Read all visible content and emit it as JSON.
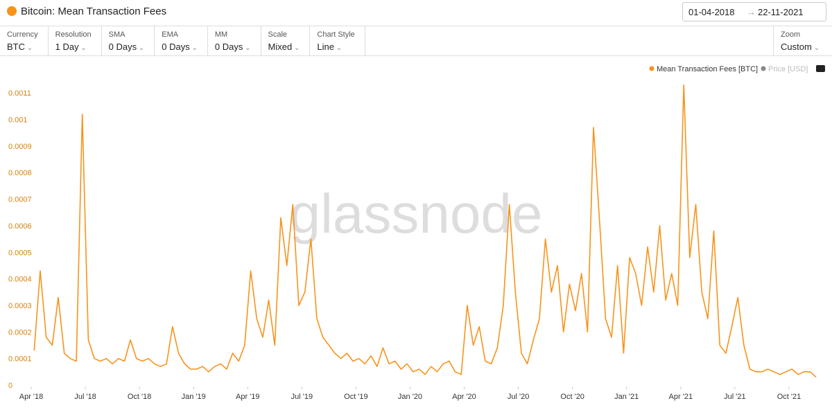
{
  "ui": {
    "title": "Bitcoin: Mean Transaction Fees",
    "date_from": "01-04-2018",
    "date_to": "22-11-2021",
    "controls": [
      {
        "label": "Currency",
        "value": "BTC"
      },
      {
        "label": "Resolution",
        "value": "1 Day"
      },
      {
        "label": "SMA",
        "value": "0 Days"
      },
      {
        "label": "EMA",
        "value": "0 Days"
      },
      {
        "label": "MM",
        "value": "0 Days"
      },
      {
        "label": "Scale",
        "value": "Mixed"
      },
      {
        "label": "Chart Style",
        "value": "Line"
      }
    ],
    "zoom": {
      "label": "Zoom",
      "value": "Custom"
    }
  },
  "chart_data": {
    "type": "line",
    "watermark": "glassnode",
    "legend_inactive": "Price [USD]",
    "grid": false,
    "xlim": [
      "2018-04",
      "2021-11"
    ],
    "ylim": [
      0,
      0.00115
    ],
    "yticks": [
      0,
      0.0001,
      0.0002,
      0.0003,
      0.0004,
      0.0005,
      0.0006,
      0.0007,
      0.0008,
      0.0009,
      0.001,
      0.0011
    ],
    "xticks": [
      {
        "value": "2018-04",
        "label": "Apr '18"
      },
      {
        "value": "2018-07",
        "label": "Jul '18"
      },
      {
        "value": "2018-10",
        "label": "Oct '18"
      },
      {
        "value": "2019-01",
        "label": "Jan '19"
      },
      {
        "value": "2019-04",
        "label": "Apr '19"
      },
      {
        "value": "2019-07",
        "label": "Jul '19"
      },
      {
        "value": "2019-10",
        "label": "Oct '19"
      },
      {
        "value": "2020-01",
        "label": "Jan '20"
      },
      {
        "value": "2020-04",
        "label": "Apr '20"
      },
      {
        "value": "2020-07",
        "label": "Jul '20"
      },
      {
        "value": "2020-10",
        "label": "Oct '20"
      },
      {
        "value": "2021-01",
        "label": "Jan '21"
      },
      {
        "value": "2021-04",
        "label": "Apr '21"
      },
      {
        "value": "2021-07",
        "label": "Jul '21"
      },
      {
        "value": "2021-10",
        "label": "Oct '21"
      }
    ],
    "x": [
      "2018-04",
      "2018-04",
      "2018-04",
      "2018-05",
      "2018-05",
      "2018-05",
      "2018-06",
      "2018-06",
      "2018-06",
      "2018-07",
      "2018-07",
      "2018-07",
      "2018-08",
      "2018-08",
      "2018-08",
      "2018-09",
      "2018-09",
      "2018-09",
      "2018-10",
      "2018-10",
      "2018-10",
      "2018-11",
      "2018-11",
      "2018-11",
      "2018-12",
      "2018-12",
      "2018-12",
      "2019-01",
      "2019-01",
      "2019-01",
      "2019-02",
      "2019-02",
      "2019-02",
      "2019-03",
      "2019-03",
      "2019-03",
      "2019-04",
      "2019-04",
      "2019-04",
      "2019-05",
      "2019-05",
      "2019-05",
      "2019-06",
      "2019-06",
      "2019-06",
      "2019-07",
      "2019-07",
      "2019-07",
      "2019-08",
      "2019-08",
      "2019-08",
      "2019-09",
      "2019-09",
      "2019-09",
      "2019-10",
      "2019-10",
      "2019-10",
      "2019-11",
      "2019-11",
      "2019-11",
      "2019-12",
      "2019-12",
      "2019-12",
      "2020-01",
      "2020-01",
      "2020-01",
      "2020-02",
      "2020-02",
      "2020-02",
      "2020-03",
      "2020-03",
      "2020-03",
      "2020-04",
      "2020-04",
      "2020-04",
      "2020-05",
      "2020-05",
      "2020-05",
      "2020-06",
      "2020-06",
      "2020-06",
      "2020-07",
      "2020-07",
      "2020-07",
      "2020-08",
      "2020-08",
      "2020-08",
      "2020-09",
      "2020-09",
      "2020-09",
      "2020-10",
      "2020-10",
      "2020-10",
      "2020-11",
      "2020-11",
      "2020-11",
      "2020-12",
      "2020-12",
      "2020-12",
      "2021-01",
      "2021-01",
      "2021-01",
      "2021-02",
      "2021-02",
      "2021-02",
      "2021-03",
      "2021-03",
      "2021-03",
      "2021-04",
      "2021-04",
      "2021-04",
      "2021-05",
      "2021-05",
      "2021-05",
      "2021-06",
      "2021-06",
      "2021-06",
      "2021-07",
      "2021-07",
      "2021-07",
      "2021-08",
      "2021-08",
      "2021-08",
      "2021-09",
      "2021-09",
      "2021-09",
      "2021-10",
      "2021-10",
      "2021-10",
      "2021-11",
      "2021-11"
    ],
    "series": [
      {
        "name": "Mean Transaction Fees [BTC]",
        "color": "#f7931a",
        "values": [
          0.00013,
          0.00043,
          0.00018,
          0.00015,
          0.00033,
          0.00012,
          0.0001,
          9e-05,
          0.00102,
          0.00017,
          0.0001,
          9e-05,
          0.0001,
          8e-05,
          0.0001,
          9e-05,
          0.00017,
          0.0001,
          9e-05,
          0.0001,
          8e-05,
          7e-05,
          8e-05,
          0.00022,
          0.00012,
          8e-05,
          6e-05,
          6e-05,
          7e-05,
          5e-05,
          7e-05,
          8e-05,
          6e-05,
          0.00012,
          9e-05,
          0.00015,
          0.00043,
          0.00025,
          0.00018,
          0.00032,
          0.00015,
          0.00063,
          0.00045,
          0.00068,
          0.0003,
          0.00035,
          0.00055,
          0.00025,
          0.00018,
          0.00015,
          0.00012,
          0.0001,
          0.00012,
          9e-05,
          0.0001,
          8e-05,
          0.00011,
          7e-05,
          0.00014,
          8e-05,
          9e-05,
          6e-05,
          8e-05,
          5e-05,
          6e-05,
          4e-05,
          7e-05,
          5e-05,
          8e-05,
          9e-05,
          5e-05,
          4e-05,
          0.0003,
          0.00015,
          0.00022,
          9e-05,
          8e-05,
          0.00014,
          0.0003,
          0.00068,
          0.00035,
          0.00012,
          8e-05,
          0.00017,
          0.00025,
          0.00055,
          0.00035,
          0.00045,
          0.0002,
          0.00038,
          0.00028,
          0.00042,
          0.0002,
          0.00097,
          0.00062,
          0.00025,
          0.00018,
          0.00045,
          0.00012,
          0.00048,
          0.00042,
          0.0003,
          0.00052,
          0.00035,
          0.0006,
          0.00032,
          0.00042,
          0.0003,
          0.00113,
          0.00048,
          0.00068,
          0.00035,
          0.00025,
          0.00058,
          0.00015,
          0.00012,
          0.00022,
          0.00033,
          0.00015,
          6e-05,
          5e-05,
          5e-05,
          6e-05,
          5e-05,
          4e-05,
          5e-05,
          6e-05,
          4e-05,
          5e-05,
          5e-05,
          3e-05
        ]
      }
    ]
  }
}
